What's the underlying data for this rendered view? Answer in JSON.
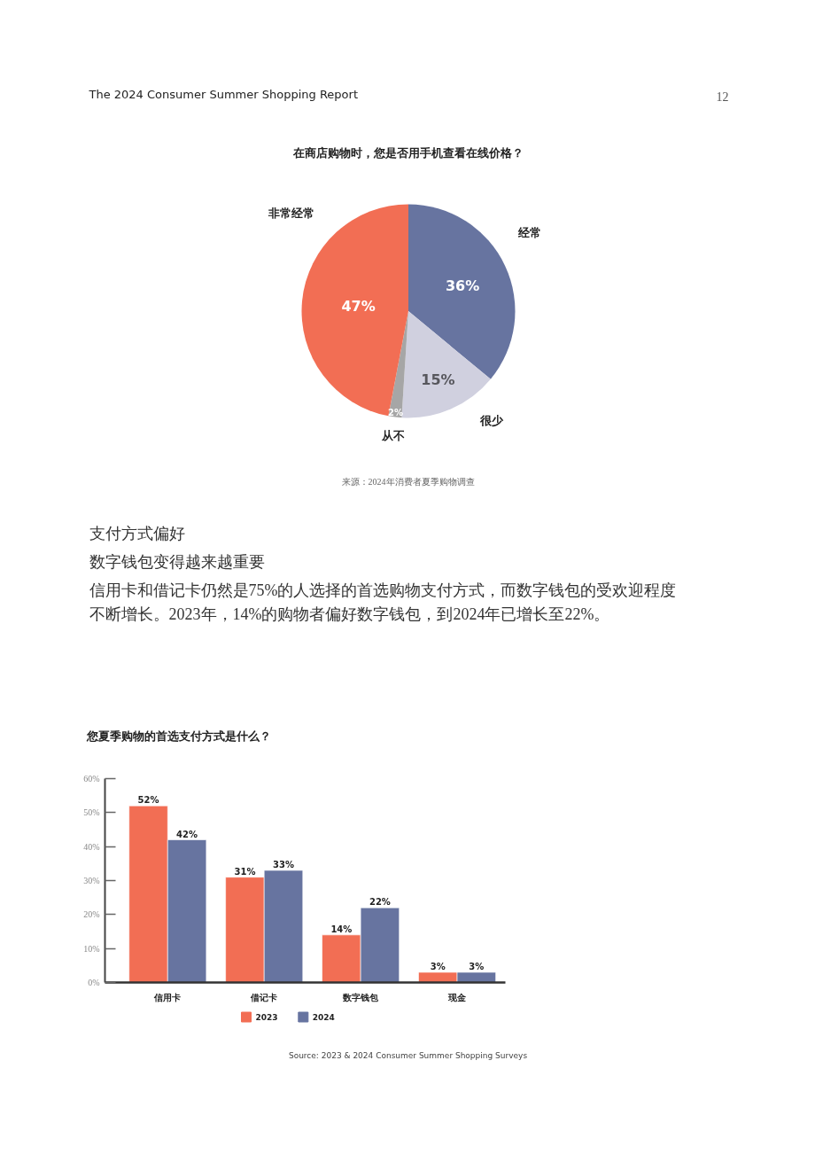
{
  "chart_data": [
    {
      "type": "pie",
      "title": "在商店购物时，您是否用手机查看在线价格？",
      "categories": [
        "经常",
        "很少",
        "从不",
        "非常经常"
      ],
      "values": [
        36,
        15,
        2,
        47
      ],
      "colors": [
        "#6774a0",
        "#d0d0df",
        "#a6a6a6",
        "#f26e54"
      ],
      "value_labels": [
        "36%",
        "15%",
        "2%",
        "47%"
      ],
      "annotations": [
        "The 2024 Consumer Summer Shopping Report",
        "12",
        "来源：2024年消费者夏季购物调查"
      ]
    },
    {
      "type": "bar",
      "title": "您夏季购物的首选支付方式是什么？",
      "categories": [
        "信用卡",
        "借记卡",
        "数字钱包",
        "现金"
      ],
      "series": [
        {
          "name": "2023",
          "color": "#f26e54",
          "values": [
            52,
            31,
            14,
            3
          ],
          "value_labels": [
            "52%",
            "31%",
            "14%",
            "3%"
          ]
        },
        {
          "name": "2024",
          "color": "#6774a0",
          "values": [
            42,
            33,
            22,
            3
          ],
          "value_labels": [
            "42%",
            "33%",
            "22%",
            "3%"
          ]
        }
      ],
      "ylim": [
        0,
        60
      ],
      "yticks": [
        {
          "value": 0,
          "label": "0%"
        },
        {
          "value": 10,
          "label": "10%"
        },
        {
          "value": 20,
          "label": "20%"
        },
        {
          "value": 30,
          "label": "30%"
        },
        {
          "value": 40,
          "label": "40%"
        },
        {
          "value": 50,
          "label": "50%"
        },
        {
          "value": 60,
          "label": "60%"
        }
      ],
      "legend": "bottom",
      "annotations": [
        "支付方式偏好",
        "数字钱包变得越来越重要",
        "信用卡和借记卡仍然是75%的人选择的首选购物支付方式，而数字钱包的受欢迎程度不断增长。2023年，14%的购物者偏好数字钱包，到2024年已增长至22%。",
        "Source: 2023 & 2024 Consumer Summer Shopping Surveys"
      ]
    }
  ]
}
